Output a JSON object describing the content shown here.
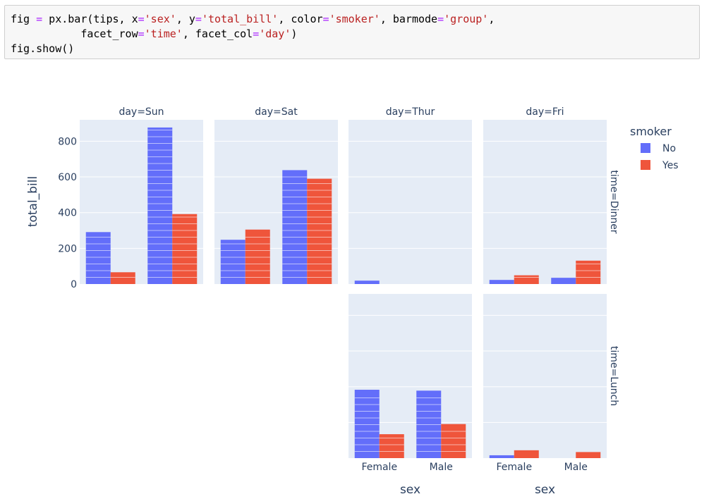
{
  "code_cell": {
    "lines": [
      [
        {
          "t": "fig ",
          "k": "plain"
        },
        {
          "t": "=",
          "k": "op"
        },
        {
          "t": " px.bar(tips, x",
          "k": "plain"
        },
        {
          "t": "=",
          "k": "op"
        },
        {
          "t": "'sex'",
          "k": "str"
        },
        {
          "t": ", y",
          "k": "plain"
        },
        {
          "t": "=",
          "k": "op"
        },
        {
          "t": "'total_bill'",
          "k": "str"
        },
        {
          "t": ", color",
          "k": "plain"
        },
        {
          "t": "=",
          "k": "op"
        },
        {
          "t": "'smoker'",
          "k": "str"
        },
        {
          "t": ", barmode",
          "k": "plain"
        },
        {
          "t": "=",
          "k": "op"
        },
        {
          "t": "'group'",
          "k": "str"
        },
        {
          "t": ",",
          "k": "plain"
        }
      ],
      [
        {
          "t": "           facet_row",
          "k": "plain"
        },
        {
          "t": "=",
          "k": "op"
        },
        {
          "t": "'time'",
          "k": "str"
        },
        {
          "t": ", facet_col",
          "k": "plain"
        },
        {
          "t": "=",
          "k": "op"
        },
        {
          "t": "'day'",
          "k": "str"
        },
        {
          "t": ")",
          "k": "plain"
        }
      ],
      [
        {
          "t": "fig.show()",
          "k": "plain"
        }
      ]
    ]
  },
  "chart_data": {
    "type": "bar",
    "barmode": "group",
    "x_label": "sex",
    "y_label": "total_bill",
    "categories": [
      "Female",
      "Male"
    ],
    "y_range": [
      0,
      920
    ],
    "y_ticks": [
      0,
      200,
      400,
      600,
      800
    ],
    "grid": true,
    "legend": {
      "title": "smoker",
      "position": "top-right",
      "entries": [
        {
          "name": "No",
          "color": "#636efa"
        },
        {
          "name": "Yes",
          "color": "#ef553b"
        }
      ]
    },
    "col_labels": [
      "day=Sun",
      "day=Sat",
      "day=Thur",
      "day=Fri"
    ],
    "row_labels": [
      "time=Dinner",
      "time=Lunch"
    ],
    "panels": [
      {
        "row": 0,
        "col": 0,
        "series": [
          {
            "name": "No",
            "values": [
              291,
              877
            ]
          },
          {
            "name": "Yes",
            "values": [
              66,
              392
            ]
          }
        ]
      },
      {
        "row": 0,
        "col": 1,
        "series": [
          {
            "name": "No",
            "values": [
              248,
              638
            ]
          },
          {
            "name": "Yes",
            "values": [
              305,
              590
            ]
          }
        ]
      },
      {
        "row": 0,
        "col": 2,
        "series": [
          {
            "name": "No",
            "values": [
              19,
              0
            ]
          },
          {
            "name": "Yes",
            "values": [
              0,
              0
            ]
          }
        ]
      },
      {
        "row": 0,
        "col": 3,
        "series": [
          {
            "name": "No",
            "values": [
              23,
              35
            ]
          },
          {
            "name": "Yes",
            "values": [
              49,
              131
            ]
          }
        ]
      },
      {
        "row": 1,
        "col": 2,
        "series": [
          {
            "name": "No",
            "values": [
              383,
              378
            ]
          },
          {
            "name": "Yes",
            "values": [
              134,
              191
            ]
          }
        ]
      },
      {
        "row": 1,
        "col": 3,
        "series": [
          {
            "name": "No",
            "values": [
              16,
              0
            ]
          },
          {
            "name": "Yes",
            "values": [
              44,
              34
            ]
          }
        ]
      }
    ]
  }
}
